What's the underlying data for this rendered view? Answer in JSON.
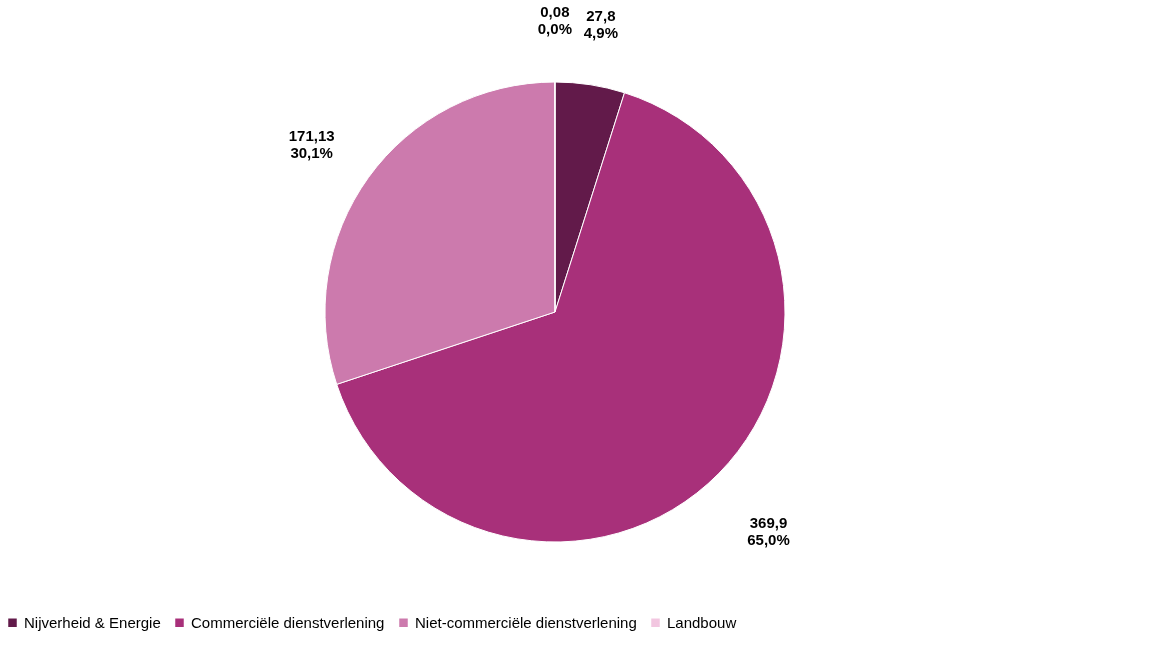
{
  "chart_data": {
    "type": "pie",
    "categories": [
      "Nijverheid & Energie",
      "Commerciële dienstverlening",
      "Niet-commerciële dienstverlening",
      "Landbouw"
    ],
    "values": [
      27.8,
      369.9,
      171.13,
      0.08
    ],
    "colors": [
      "#621a4a",
      "#a8307a",
      "#cc7aad",
      "#f2c6e0"
    ],
    "value_labels": [
      "27,8\n4,9%",
      "369,9\n65,0%",
      "171,13\n30,1%",
      "0,08\n0,0%"
    ],
    "legend": "bottom"
  }
}
